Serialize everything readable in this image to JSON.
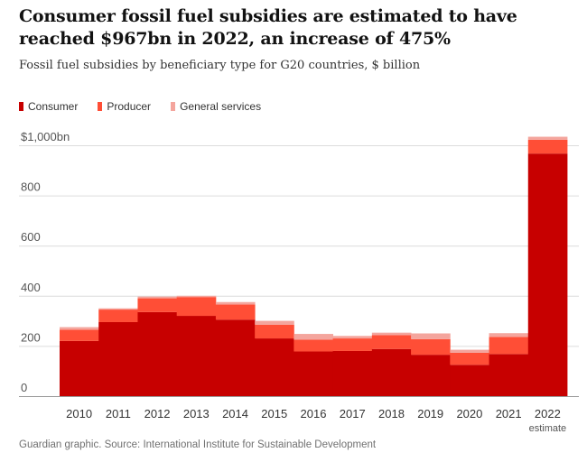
{
  "title": "Consumer fossil fuel subsidies are estimated to have reached $967bn in 2022, an increase of 475%",
  "subtitle": "Fossil fuel subsidies by beneficiary type for G20 countries, $ billion",
  "legend": [
    {
      "label": "Consumer",
      "color": "#c70000"
    },
    {
      "label": "Producer",
      "color": "#ff4e36"
    },
    {
      "label": "General services",
      "color": "#f4a59d"
    }
  ],
  "source": "Guardian graphic. Source: International Institute for Sustainable Development",
  "chart_data": {
    "type": "bar",
    "stacked": true,
    "categories": [
      "2010",
      "2011",
      "2012",
      "2013",
      "2014",
      "2015",
      "2016",
      "2017",
      "2018",
      "2019",
      "2020",
      "2021",
      "2022"
    ],
    "category_sublabels": {
      "2022": "estimate"
    },
    "series": [
      {
        "name": "Consumer",
        "color": "#c70000",
        "values": [
          220,
          295,
          335,
          320,
          305,
          230,
          178,
          180,
          188,
          165,
          125,
          168,
          967
        ]
      },
      {
        "name": "Producer",
        "color": "#ff4e36",
        "values": [
          45,
          50,
          55,
          75,
          60,
          55,
          47,
          50,
          55,
          62,
          48,
          68,
          55
        ]
      },
      {
        "name": "General services",
        "color": "#f4a59d",
        "values": [
          10,
          5,
          7,
          5,
          10,
          15,
          23,
          10,
          10,
          23,
          12,
          15,
          12
        ]
      }
    ],
    "yticks": [
      0,
      200,
      400,
      600,
      800,
      1000
    ],
    "ytick_labels": [
      "0",
      "200",
      "400",
      "600",
      "800",
      "$1,000bn"
    ],
    "ylim": [
      0,
      1000
    ],
    "grid": true
  }
}
